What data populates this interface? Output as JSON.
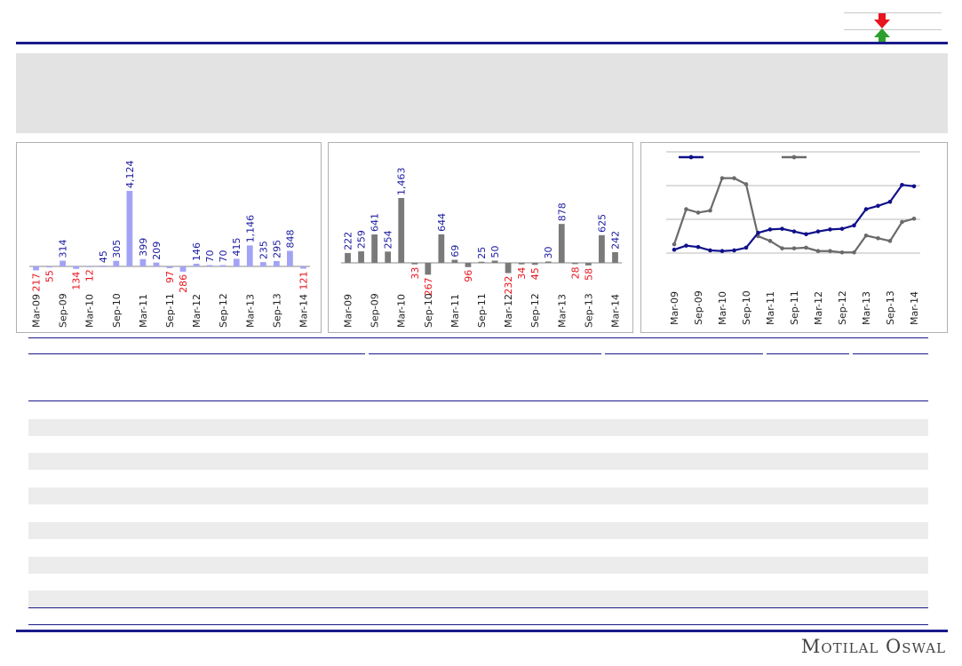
{
  "brand": {
    "name": "Motilal Oswal"
  },
  "legend_icons": {
    "down": "down-arrow-icon",
    "up": "up-arrow-icon",
    "down_color": "#e8141e",
    "up_color": "#2e9e2e"
  },
  "colors": {
    "navy": "#1a1a8c",
    "positive": "#1a1aa0",
    "negative": "#e8141e",
    "bar_blue": "#a3a3f5",
    "bar_gray": "#7a7a7a",
    "line_navy": "#10108a",
    "line_gray": "#6a6a6a"
  },
  "chart_data": [
    {
      "type": "bar",
      "categories": [
        "Mar-09",
        "Jun-09",
        "Sep-09",
        "Dec-09",
        "Mar-10",
        "Jun-10",
        "Sep-10",
        "Dec-10",
        "Mar-11",
        "Jun-11",
        "Sep-11",
        "Dec-11",
        "Mar-12",
        "Jun-12",
        "Sep-12",
        "Dec-12",
        "Mar-13",
        "Jun-13",
        "Sep-13",
        "Dec-13",
        "Mar-14"
      ],
      "x_tick_labels": [
        "Mar-09",
        "Sep-09",
        "Mar-10",
        "Sep-10",
        "Mar-11",
        "Sep-11",
        "Mar-12",
        "Sep-12",
        "Mar-13",
        "Sep-13",
        "Mar-14"
      ],
      "values": [
        -217,
        -55,
        314,
        -134,
        -12,
        45,
        305,
        4124,
        399,
        209,
        -97,
        -286,
        146,
        70,
        70,
        415,
        1146,
        235,
        295,
        848,
        -121
      ],
      "data_labels": [
        "217",
        "55",
        "314",
        "134",
        "12",
        "45",
        "305",
        "4,124",
        "399",
        "209",
        "97",
        "286",
        "146",
        "70",
        "70",
        "415",
        "1,146",
        "235",
        "295",
        "848",
        "121"
      ],
      "ylim": [
        -500,
        4400
      ]
    },
    {
      "type": "bar",
      "categories": [
        "Mar-09",
        "Jun-09",
        "Sep-09",
        "Dec-09",
        "Mar-10",
        "Jun-10",
        "Sep-10",
        "Dec-10",
        "Mar-11",
        "Jun-11",
        "Sep-11",
        "Dec-11",
        "Mar-12",
        "Jun-12",
        "Sep-12",
        "Dec-12",
        "Mar-13",
        "Jun-13",
        "Sep-13",
        "Dec-13",
        "Mar-14"
      ],
      "x_tick_labels": [
        "Mar-09",
        "Sep-09",
        "Mar-10",
        "Sep-10",
        "Mar-11",
        "Sep-11",
        "Mar-12",
        "Sep-12",
        "Mar-13",
        "Sep-13",
        "Mar-14"
      ],
      "values": [
        222,
        259,
        641,
        254,
        1463,
        -33,
        -267,
        644,
        69,
        -96,
        25,
        50,
        -232,
        -34,
        -45,
        30,
        878,
        -28,
        -58,
        625,
        242
      ],
      "data_labels": [
        "222",
        "259",
        "641",
        "254",
        "1,463",
        "33",
        "267",
        "644",
        "69",
        "96",
        "25",
        "50",
        "232",
        "34",
        "45",
        "30",
        "878",
        "28",
        "58",
        "625",
        "242"
      ],
      "ylim": [
        -400,
        1650
      ]
    },
    {
      "type": "line",
      "categories": [
        "Mar-09",
        "Jun-09",
        "Sep-09",
        "Dec-09",
        "Mar-10",
        "Jun-10",
        "Sep-10",
        "Dec-10",
        "Mar-11",
        "Jun-11",
        "Sep-11",
        "Dec-11",
        "Mar-12",
        "Jun-12",
        "Sep-12",
        "Dec-12",
        "Mar-13",
        "Jun-13",
        "Sep-13",
        "Dec-13",
        "Mar-14"
      ],
      "x_tick_labels": [
        "Mar-09",
        "Sep-09",
        "Mar-10",
        "Sep-10",
        "Mar-11",
        "Sep-11",
        "Mar-12",
        "Sep-12",
        "Mar-13",
        "Sep-13",
        "Mar-14"
      ],
      "series": [
        {
          "values": [
            0.5,
            1.1,
            0.9,
            0.4,
            0.3,
            0.4,
            0.8,
            3.0,
            3.5,
            3.6,
            3.2,
            2.8,
            3.2,
            3.5,
            3.6,
            4.1,
            6.5,
            7.0,
            7.6,
            10.1,
            9.9
          ]
        },
        {
          "values": [
            1.3,
            6.5,
            6.0,
            6.3,
            11.1,
            11.1,
            10.2,
            2.5,
            1.8,
            0.7,
            0.7,
            0.8,
            0.3,
            0.3,
            0.1,
            0.1,
            2.6,
            2.2,
            1.8,
            4.6,
            5.1
          ]
        }
      ],
      "ylim": [
        -3,
        13
      ],
      "gridlines": [
        0,
        5,
        10,
        15
      ]
    }
  ]
}
